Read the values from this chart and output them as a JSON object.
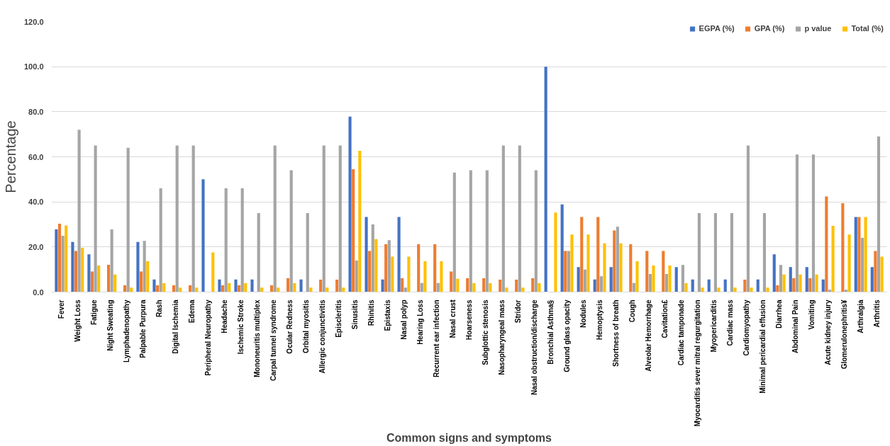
{
  "chart_data": {
    "type": "bar",
    "xlabel": "Common signs and symptoms",
    "ylabel": "Percentage",
    "categories": [
      "Fever",
      "Weight Loss",
      "Fatigue",
      "Night Sweating",
      "Lymphadenopathy",
      "Palpable Purpura",
      "Rash",
      "Digital Ischemia",
      "Edema",
      "Peripheral Neuropathy",
      "Headache",
      "Ischemic Stroke",
      "Mononeuritis multiplex",
      "Carpal tunnel syndrome",
      "Ocular Redness",
      "Orbital myositis",
      "Allergic conjunctivitis",
      "Episcleritis",
      "Sinusitis",
      "Rhinitis",
      "Epistaxis",
      "Nasal polyp",
      "Hearing Loss",
      "Recurrent ear infection",
      "Nasal crust",
      "Hoarseness",
      "Subglottic stenosis",
      "Nasopharyngeal mass",
      "Stridor",
      "Nasal obstruction/discharge",
      "Bronchial Asthma§",
      "Ground glass opacity",
      "Nodules",
      "Hemoptysis",
      "Shortness of breath",
      "Cough",
      "Alveolar Hemorrhage",
      "Cavitation£",
      "Cardiac tamponade",
      "Myocarditis sever mitral regurgitation",
      "Myopericarditis",
      "Cardiac mass",
      "Cardiomyopathy",
      "Minimal pericardial effusion",
      "Diarrhea",
      "Abdominal Pain",
      "Vomiting",
      "Acute kidney injury",
      "Glomerulonephritis¥",
      "Arthralgia",
      "Arthritis"
    ],
    "series": [
      {
        "name": "EGPA (%)",
        "color": "#4472c4",
        "values": [
          27.8,
          22.2,
          16.7,
          0,
          0,
          22.2,
          5.6,
          0,
          0,
          50,
          5.6,
          5.6,
          5.6,
          0,
          0,
          5.6,
          0,
          0,
          77.8,
          33.3,
          5.6,
          33.3,
          0,
          0,
          0,
          0,
          0,
          0,
          0,
          0,
          100,
          38.9,
          11.1,
          5.6,
          11.1,
          0,
          0,
          0,
          11.1,
          5.6,
          5.6,
          5.6,
          0,
          5.6,
          16.7,
          11.1,
          11.1,
          5.6,
          0,
          33.3,
          11.1
        ]
      },
      {
        "name": "GPA (%)",
        "color": "#ed7d31",
        "values": [
          30.3,
          18.2,
          9.1,
          12.1,
          3,
          9.1,
          3,
          3,
          3,
          0,
          3,
          3,
          0,
          3,
          6.1,
          0,
          5.5,
          5.5,
          54.5,
          18.2,
          21.2,
          6.1,
          21.2,
          21.2,
          9.1,
          6.1,
          6.1,
          5.5,
          5.5,
          6.1,
          0,
          18.2,
          33.3,
          33.3,
          27.3,
          21.2,
          18.2,
          18.2,
          0,
          0,
          0,
          0,
          5.5,
          0,
          3,
          6.1,
          6.1,
          42.4,
          39.4,
          33.3,
          18.2
        ]
      },
      {
        "name": "p value",
        "color": "#a5a5a5",
        "values": [
          25,
          72,
          65,
          27.8,
          64,
          22.7,
          46,
          65,
          65,
          0,
          46,
          46,
          35,
          65,
          54,
          35,
          65,
          65,
          14,
          30,
          23,
          2,
          4,
          4,
          53,
          54,
          54,
          65,
          65,
          54,
          0,
          18.2,
          10,
          7,
          29,
          4,
          8,
          8,
          12,
          35,
          35,
          35,
          65,
          35,
          12,
          61,
          61,
          1,
          1,
          24,
          69
        ]
      },
      {
        "name": "Total (%)",
        "color": "#ffc000",
        "values": [
          29.5,
          19.6,
          11.8,
          7.8,
          2,
          13.7,
          3.9,
          2,
          2,
          17.6,
          3.9,
          3.9,
          2,
          2,
          3.9,
          2,
          2,
          2,
          62.7,
          23.5,
          15.7,
          15.7,
          13.7,
          13.7,
          5.9,
          3.9,
          3.9,
          2,
          2,
          3.9,
          35.3,
          25.5,
          25.5,
          21.6,
          21.6,
          13.7,
          11.8,
          11.8,
          3.9,
          2,
          2,
          2,
          2,
          2,
          7.8,
          7.8,
          7.8,
          29.4,
          25.5,
          33.3,
          15.7
        ]
      }
    ],
    "ylim": [
      0,
      120
    ],
    "yticks": [
      {
        "value": 0,
        "label": "0.0"
      },
      {
        "value": 20,
        "label": "20.0"
      },
      {
        "value": 40,
        "label": "40.0"
      },
      {
        "value": 60,
        "label": "60.0"
      },
      {
        "value": 80,
        "label": "80.0"
      },
      {
        "value": 100,
        "label": "100.0"
      },
      {
        "value": 120,
        "label": "120.0"
      }
    ],
    "grid": "y",
    "legend": "top right"
  }
}
